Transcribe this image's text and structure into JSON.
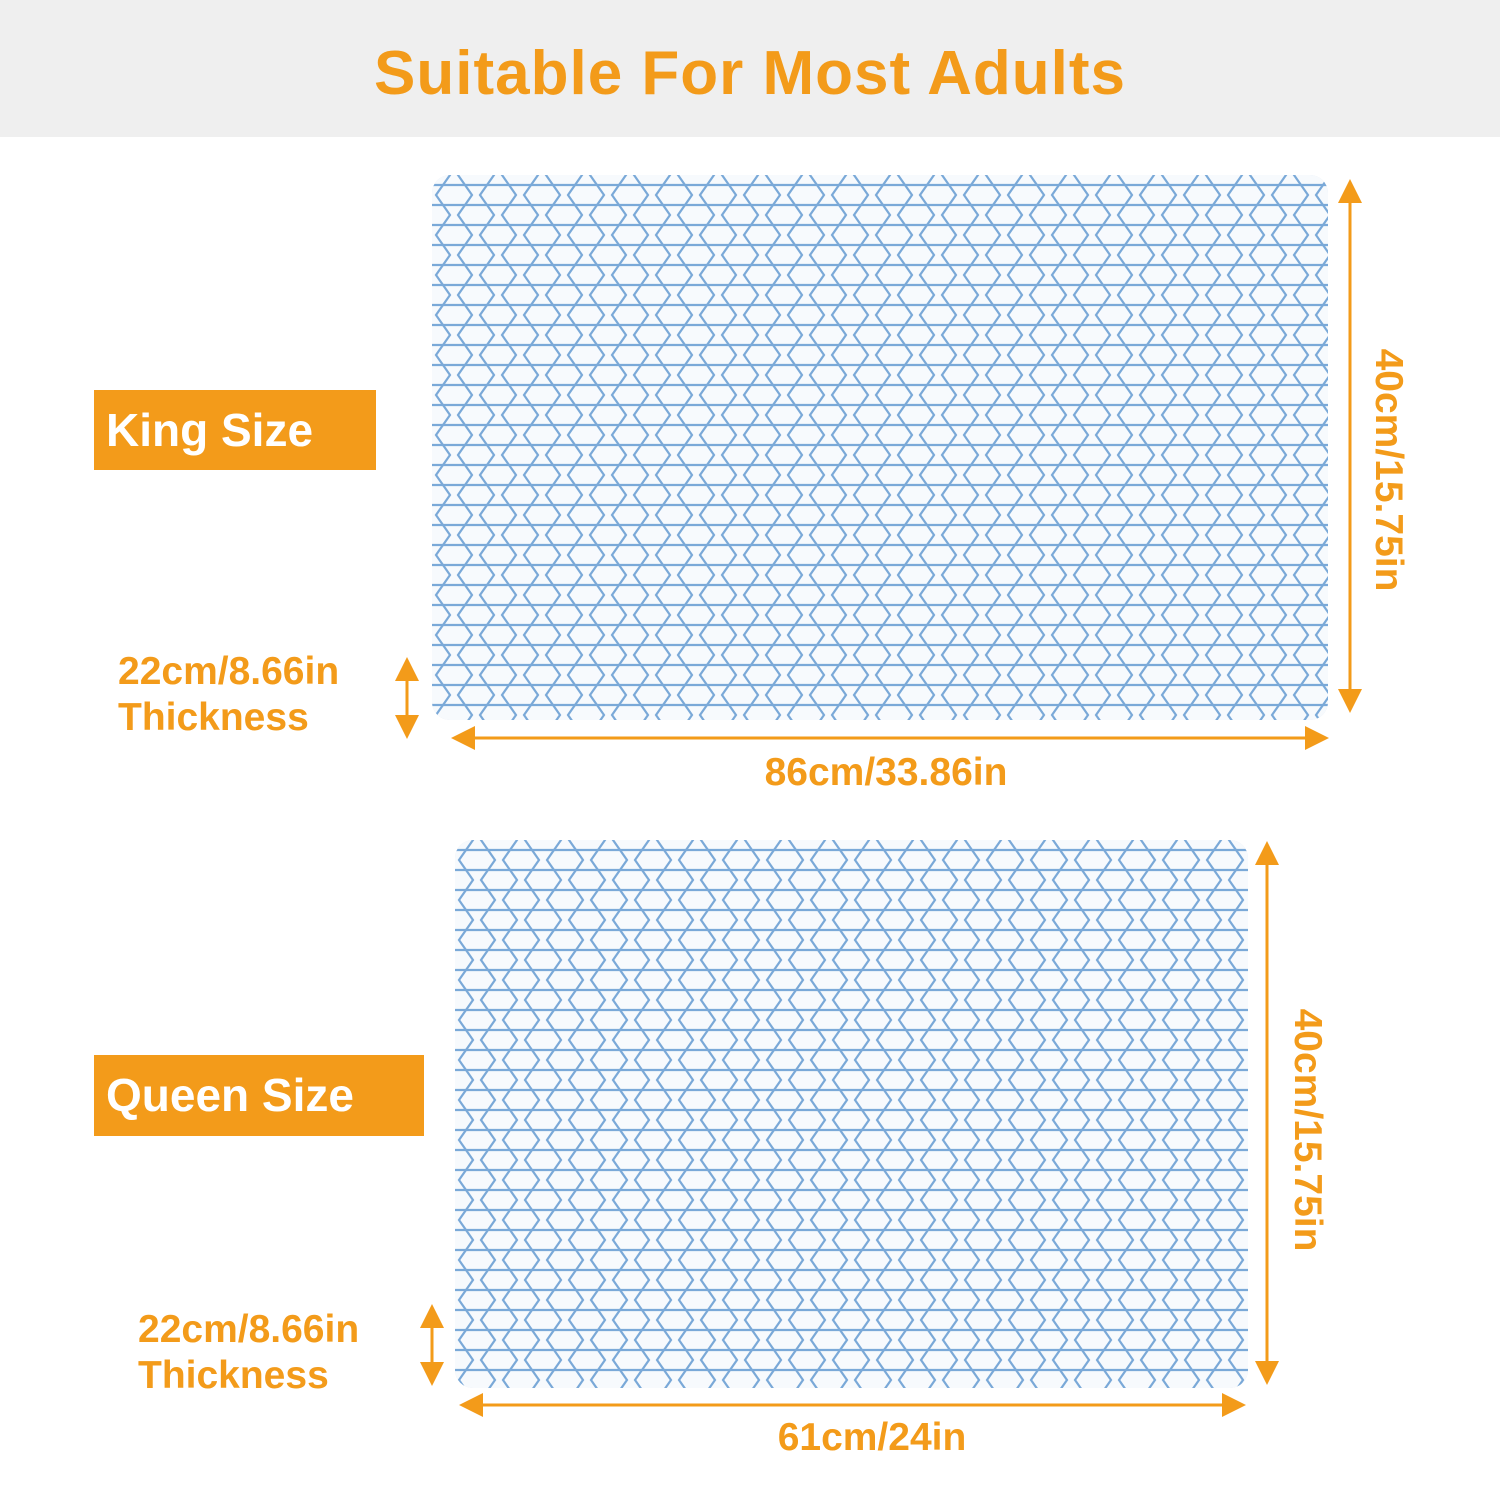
{
  "header": {
    "title": "Suitable For Most Adults"
  },
  "king": {
    "label": "King Size",
    "height": "40cm/15.75in",
    "width": "86cm/33.86in",
    "thickness_value": "22cm/8.66in",
    "thickness_label": "Thickness"
  },
  "queen": {
    "label": "Queen Size",
    "height": "40cm/15.75in",
    "width": "61cm/24in",
    "thickness_value": "22cm/8.66in",
    "thickness_label": "Thickness"
  },
  "colors": {
    "accent": "#f39b1a",
    "pattern": "#6fa3d6",
    "band": "#efefef"
  }
}
